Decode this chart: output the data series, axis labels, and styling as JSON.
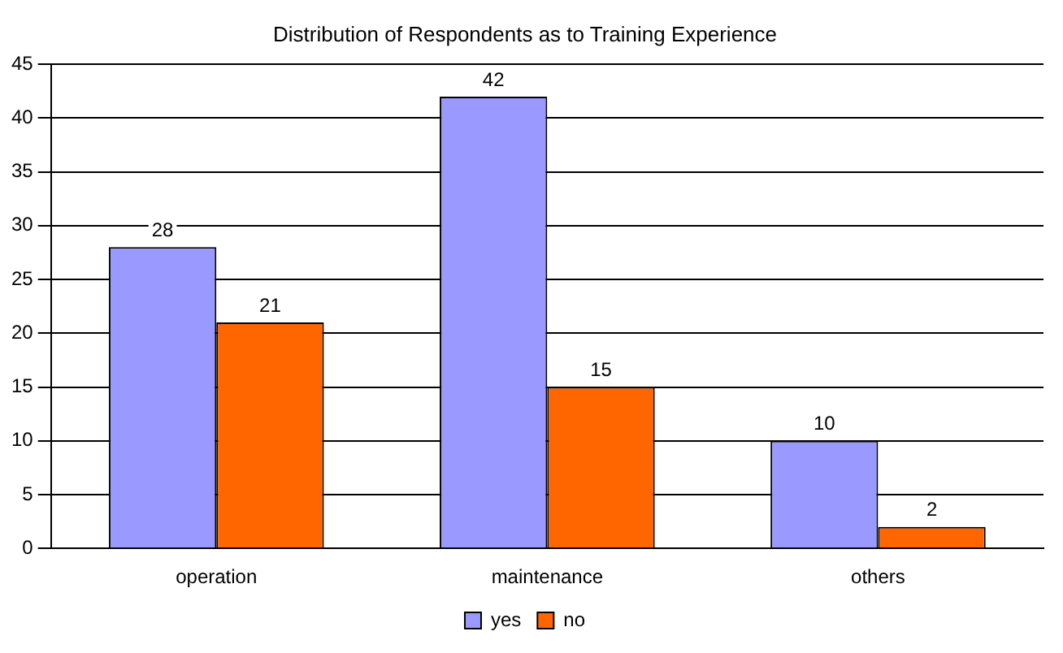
{
  "chart_data": {
    "type": "bar",
    "title": "Distribution of Respondents as to Training Experience",
    "categories": [
      "operation",
      "maintenance",
      "others"
    ],
    "series": [
      {
        "name": "yes",
        "color": "#9999ff",
        "values": [
          28,
          42,
          10
        ]
      },
      {
        "name": "no",
        "color": "#ff6600",
        "values": [
          21,
          15,
          2
        ]
      }
    ],
    "ylim": [
      0,
      45
    ],
    "yticks": [
      0,
      5,
      10,
      15,
      20,
      25,
      30,
      35,
      40,
      45
    ],
    "grid": "y",
    "legend": "bottom",
    "data_labels": true
  }
}
